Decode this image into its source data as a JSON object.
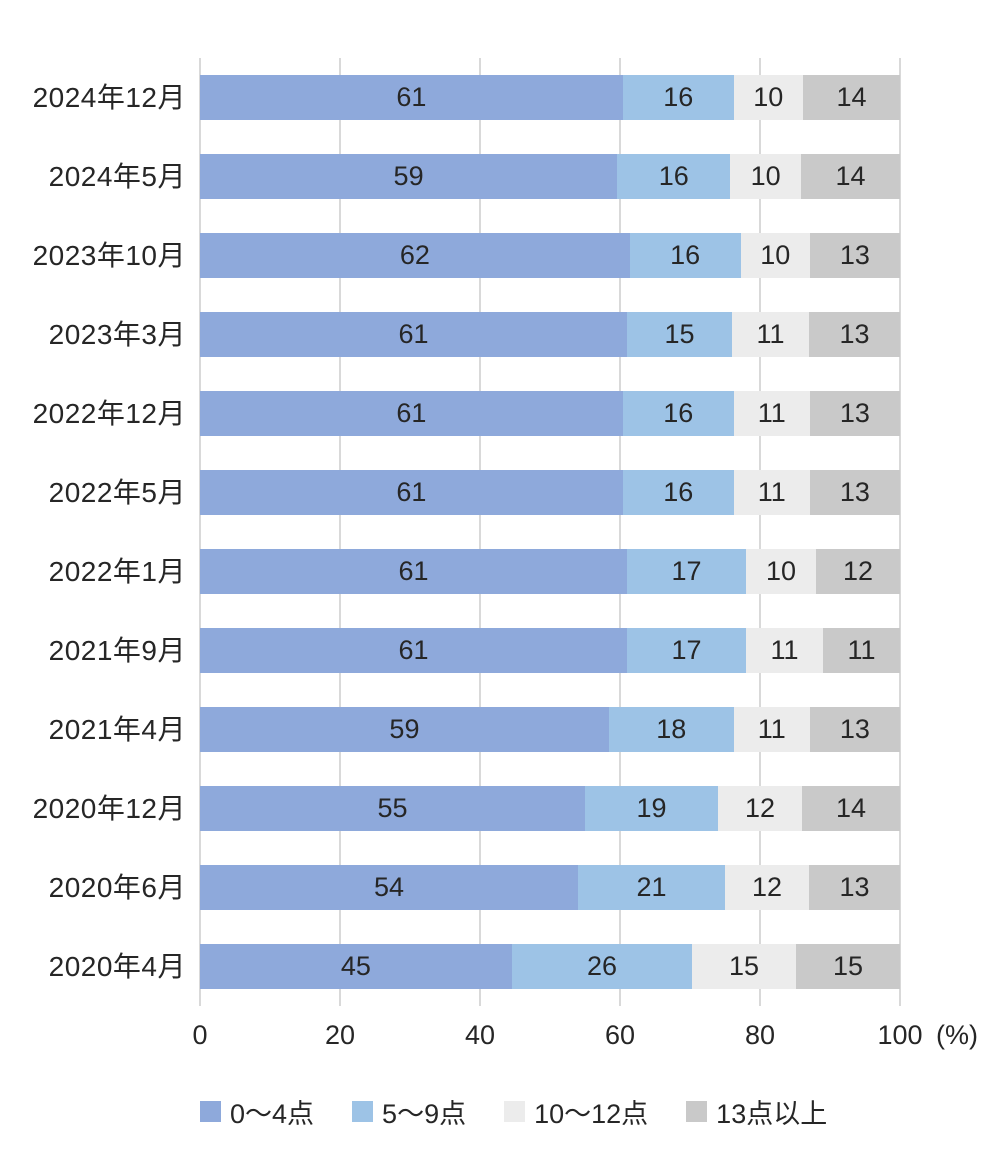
{
  "chart_data": {
    "type": "bar",
    "orientation": "horizontal",
    "stacked": "100%",
    "title": "",
    "categories": [
      "2024年12月",
      "2024年5月",
      "2023年10月",
      "2023年3月",
      "2022年12月",
      "2022年5月",
      "2022年1月",
      "2021年9月",
      "2021年4月",
      "2020年12月",
      "2020年6月",
      "2020年4月"
    ],
    "series": [
      {
        "name": "0〜4点",
        "color": "#8EA9DB",
        "values": [
          61,
          59,
          62,
          61,
          61,
          61,
          61,
          61,
          59,
          55,
          54,
          45
        ]
      },
      {
        "name": "5〜9点",
        "color": "#9DC3E6",
        "values": [
          16,
          16,
          16,
          15,
          16,
          16,
          17,
          17,
          18,
          19,
          21,
          26
        ]
      },
      {
        "name": "10〜12点",
        "color": "#ECECEC",
        "values": [
          10,
          10,
          10,
          11,
          11,
          11,
          10,
          11,
          11,
          12,
          12,
          15
        ]
      },
      {
        "name": "13点以上",
        "color": "#C9C9C9",
        "values": [
          14,
          14,
          13,
          13,
          13,
          13,
          12,
          11,
          13,
          14,
          13,
          15
        ]
      }
    ],
    "x_ticks": [
      0,
      20,
      40,
      60,
      80,
      100
    ],
    "xlim": [
      0,
      100
    ],
    "xlabel_unit": "(%)",
    "ylabel": "",
    "grid": true,
    "gridline_color": "#D9D9D9",
    "data_label_color": "#262626",
    "legend_position": "bottom"
  }
}
